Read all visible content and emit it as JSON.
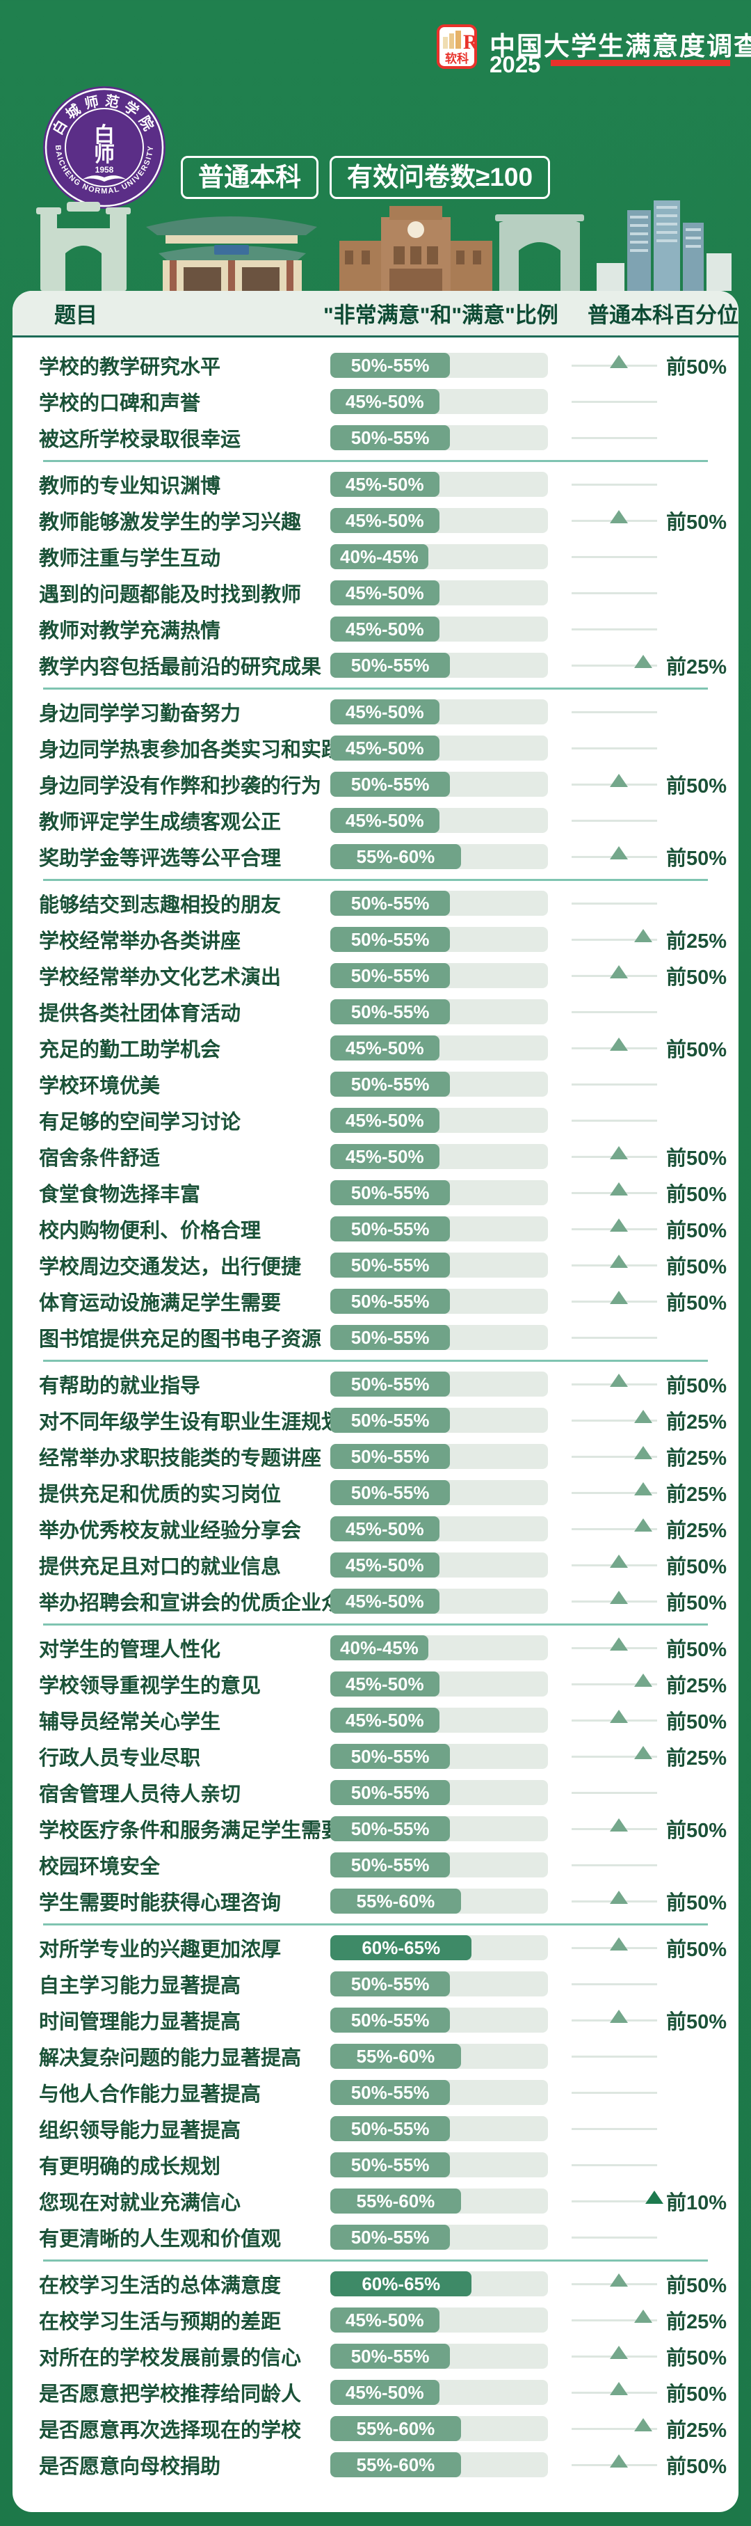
{
  "banner": {
    "brand": {
      "logo_text": "软科",
      "survey_title": "中国大学生满意度调查",
      "year": "2025"
    },
    "university": {
      "name": "白城师范学院",
      "seal_text_cn": "白城师范学院",
      "seal_text_en": "BAICHENG NORMAL UNIVERSITY",
      "seal_year": "1958",
      "seal_monogram_top": "白",
      "seal_monogram_bottom": "师"
    },
    "badges": [
      {
        "label": "普通本科"
      },
      {
        "label": "有效问卷数≥100"
      }
    ]
  },
  "chart_data": {
    "type": "bar",
    "title": "白城师范学院 — 中国大学生满意度调查 2025",
    "columns": [
      "题目",
      "\"非常满意\"和\"满意\"比例",
      "普通本科百分位"
    ],
    "value_unit": "%",
    "xlim": [
      0,
      100
    ],
    "note": "value = upper bound of satisfaction range, used as bar fill percent",
    "percentile_positions": {
      "前50%": 55,
      "前25%": 84,
      "前10%": 97
    },
    "sections": [
      {
        "rows": [
          {
            "label": "学校的教学研究水平",
            "range": "50%-55%",
            "value": 55,
            "percentile": "前50%"
          },
          {
            "label": "学校的口碑和声誉",
            "range": "45%-50%",
            "value": 50,
            "percentile": null
          },
          {
            "label": "被这所学校录取很幸运",
            "range": "50%-55%",
            "value": 55,
            "percentile": null
          }
        ]
      },
      {
        "rows": [
          {
            "label": "教师的专业知识渊博",
            "range": "45%-50%",
            "value": 50,
            "percentile": null
          },
          {
            "label": "教师能够激发学生的学习兴趣",
            "range": "45%-50%",
            "value": 50,
            "percentile": "前50%"
          },
          {
            "label": "教师注重与学生互动",
            "range": "40%-45%",
            "value": 45,
            "percentile": null
          },
          {
            "label": "遇到的问题都能及时找到教师",
            "range": "45%-50%",
            "value": 50,
            "percentile": null
          },
          {
            "label": "教师对教学充满热情",
            "range": "45%-50%",
            "value": 50,
            "percentile": null
          },
          {
            "label": "教学内容包括最前沿的研究成果",
            "range": "50%-55%",
            "value": 55,
            "percentile": "前25%"
          }
        ]
      },
      {
        "rows": [
          {
            "label": "身边同学学习勤奋努力",
            "range": "45%-50%",
            "value": 50,
            "percentile": null
          },
          {
            "label": "身边同学热衷参加各类实习和实践",
            "range": "45%-50%",
            "value": 50,
            "percentile": null
          },
          {
            "label": "身边同学没有作弊和抄袭的行为",
            "range": "50%-55%",
            "value": 55,
            "percentile": "前50%"
          },
          {
            "label": "教师评定学生成绩客观公正",
            "range": "45%-50%",
            "value": 50,
            "percentile": null
          },
          {
            "label": "奖助学金等评选等公平合理",
            "range": "55%-60%",
            "value": 60,
            "percentile": "前50%"
          }
        ]
      },
      {
        "rows": [
          {
            "label": "能够结交到志趣相投的朋友",
            "range": "50%-55%",
            "value": 55,
            "percentile": null
          },
          {
            "label": "学校经常举办各类讲座",
            "range": "50%-55%",
            "value": 55,
            "percentile": "前25%"
          },
          {
            "label": "学校经常举办文化艺术演出",
            "range": "50%-55%",
            "value": 55,
            "percentile": "前50%"
          },
          {
            "label": "提供各类社团体育活动",
            "range": "50%-55%",
            "value": 55,
            "percentile": null
          },
          {
            "label": "充足的勤工助学机会",
            "range": "45%-50%",
            "value": 50,
            "percentile": "前50%"
          },
          {
            "label": "学校环境优美",
            "range": "50%-55%",
            "value": 55,
            "percentile": null
          },
          {
            "label": "有足够的空间学习讨论",
            "range": "45%-50%",
            "value": 50,
            "percentile": null
          },
          {
            "label": "宿舍条件舒适",
            "range": "45%-50%",
            "value": 50,
            "percentile": "前50%"
          },
          {
            "label": "食堂食物选择丰富",
            "range": "50%-55%",
            "value": 55,
            "percentile": "前50%"
          },
          {
            "label": "校内购物便利、价格合理",
            "range": "50%-55%",
            "value": 55,
            "percentile": "前50%"
          },
          {
            "label": "学校周边交通发达，出行便捷",
            "range": "50%-55%",
            "value": 55,
            "percentile": "前50%"
          },
          {
            "label": "体育运动设施满足学生需要",
            "range": "50%-55%",
            "value": 55,
            "percentile": "前50%"
          },
          {
            "label": "图书馆提供充足的图书电子资源",
            "range": "50%-55%",
            "value": 55,
            "percentile": null
          }
        ]
      },
      {
        "rows": [
          {
            "label": "有帮助的就业指导",
            "range": "50%-55%",
            "value": 55,
            "percentile": "前50%"
          },
          {
            "label": "对不同年级学生设有职业生涯规划课",
            "range": "50%-55%",
            "value": 55,
            "percentile": "前25%"
          },
          {
            "label": "经常举办求职技能类的专题讲座",
            "range": "50%-55%",
            "value": 55,
            "percentile": "前25%"
          },
          {
            "label": "提供充足和优质的实习岗位",
            "range": "50%-55%",
            "value": 55,
            "percentile": "前25%"
          },
          {
            "label": "举办优秀校友就业经验分享会",
            "range": "45%-50%",
            "value": 50,
            "percentile": "前25%"
          },
          {
            "label": "提供充足且对口的就业信息",
            "range": "45%-50%",
            "value": 50,
            "percentile": "前50%"
          },
          {
            "label": "举办招聘会和宣讲会的优质企业众多",
            "range": "45%-50%",
            "value": 50,
            "percentile": "前50%"
          }
        ]
      },
      {
        "rows": [
          {
            "label": "对学生的管理人性化",
            "range": "40%-45%",
            "value": 45,
            "percentile": "前50%"
          },
          {
            "label": "学校领导重视学生的意见",
            "range": "45%-50%",
            "value": 50,
            "percentile": "前25%"
          },
          {
            "label": "辅导员经常关心学生",
            "range": "45%-50%",
            "value": 50,
            "percentile": "前50%"
          },
          {
            "label": "行政人员专业尽职",
            "range": "50%-55%",
            "value": 55,
            "percentile": "前25%"
          },
          {
            "label": "宿舍管理人员待人亲切",
            "range": "50%-55%",
            "value": 55,
            "percentile": null
          },
          {
            "label": "学校医疗条件和服务满足学生需要",
            "range": "50%-55%",
            "value": 55,
            "percentile": "前50%"
          },
          {
            "label": "校园环境安全",
            "range": "50%-55%",
            "value": 55,
            "percentile": null
          },
          {
            "label": "学生需要时能获得心理咨询",
            "range": "55%-60%",
            "value": 60,
            "percentile": "前50%"
          }
        ]
      },
      {
        "rows": [
          {
            "label": "对所学专业的兴趣更加浓厚",
            "range": "60%-65%",
            "value": 65,
            "percentile": "前50%"
          },
          {
            "label": "自主学习能力显著提高",
            "range": "50%-55%",
            "value": 55,
            "percentile": null
          },
          {
            "label": "时间管理能力显著提高",
            "range": "50%-55%",
            "value": 55,
            "percentile": "前50%"
          },
          {
            "label": "解决复杂问题的能力显著提高",
            "range": "55%-60%",
            "value": 60,
            "percentile": null
          },
          {
            "label": "与他人合作能力显著提高",
            "range": "50%-55%",
            "value": 55,
            "percentile": null
          },
          {
            "label": "组织领导能力显著提高",
            "range": "50%-55%",
            "value": 55,
            "percentile": null
          },
          {
            "label": "有更明确的成长规划",
            "range": "50%-55%",
            "value": 55,
            "percentile": null
          },
          {
            "label": "您现在对就业充满信心",
            "range": "55%-60%",
            "value": 60,
            "percentile": "前10%"
          },
          {
            "label": "有更清晰的人生观和价值观",
            "range": "50%-55%",
            "value": 55,
            "percentile": null
          }
        ]
      },
      {
        "rows": [
          {
            "label": "在校学习生活的总体满意度",
            "range": "60%-65%",
            "value": 65,
            "percentile": "前50%"
          },
          {
            "label": "在校学习生活与预期的差距",
            "range": "45%-50%",
            "value": 50,
            "percentile": "前25%"
          },
          {
            "label": "对所在的学校发展前景的信心",
            "range": "50%-55%",
            "value": 55,
            "percentile": "前50%"
          },
          {
            "label": "是否愿意把学校推荐给同龄人",
            "range": "45%-50%",
            "value": 50,
            "percentile": "前50%"
          },
          {
            "label": "是否愿意再次选择现在的学校",
            "range": "55%-60%",
            "value": 60,
            "percentile": "前25%"
          },
          {
            "label": "是否愿意向母校捐助",
            "range": "55%-60%",
            "value": 60,
            "percentile": "前50%"
          }
        ]
      }
    ]
  },
  "colors": {
    "page_bg": "#1e7b4a",
    "card_bg": "#ffffff",
    "thead_bg": "#e8efe9",
    "thead_border": "#1c6b57",
    "label_text": "#1b5238",
    "bar_track": "#e4ebe5",
    "bar_fill": "#70a388",
    "bar_fill_dark": "#3e8a67",
    "triangle": "#74a78b",
    "triangle_dark": "#1d7a4e",
    "divider": "#7fc4b1",
    "brand_red": "#e8322b",
    "seal_purple": "#5b2e87"
  }
}
